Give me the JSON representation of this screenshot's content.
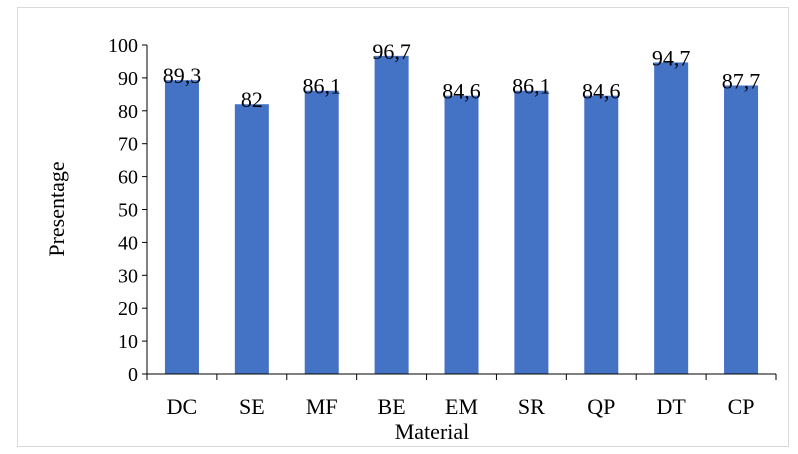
{
  "chart_data": {
    "type": "bar",
    "categories": [
      "DC",
      "SE",
      "MF",
      "BE",
      "EM",
      "SR",
      "QP",
      "DT",
      "CP"
    ],
    "values": [
      89.3,
      82,
      86.1,
      96.7,
      84.6,
      86.1,
      84.6,
      94.7,
      87.7
    ],
    "data_labels": [
      "89,3",
      "82",
      "86,1",
      "96,7",
      "84,6",
      "86,1",
      "84,6",
      "94,7",
      "87,7"
    ],
    "xlabel": "Material",
    "ylabel": "Presentage",
    "ylim": [
      0,
      100
    ],
    "yticks": [
      "0",
      "10",
      "20",
      "30",
      "40",
      "50",
      "60",
      "70",
      "80",
      "90",
      "100"
    ],
    "grid": false,
    "legend": "none",
    "bar_color": "#4472c4"
  }
}
